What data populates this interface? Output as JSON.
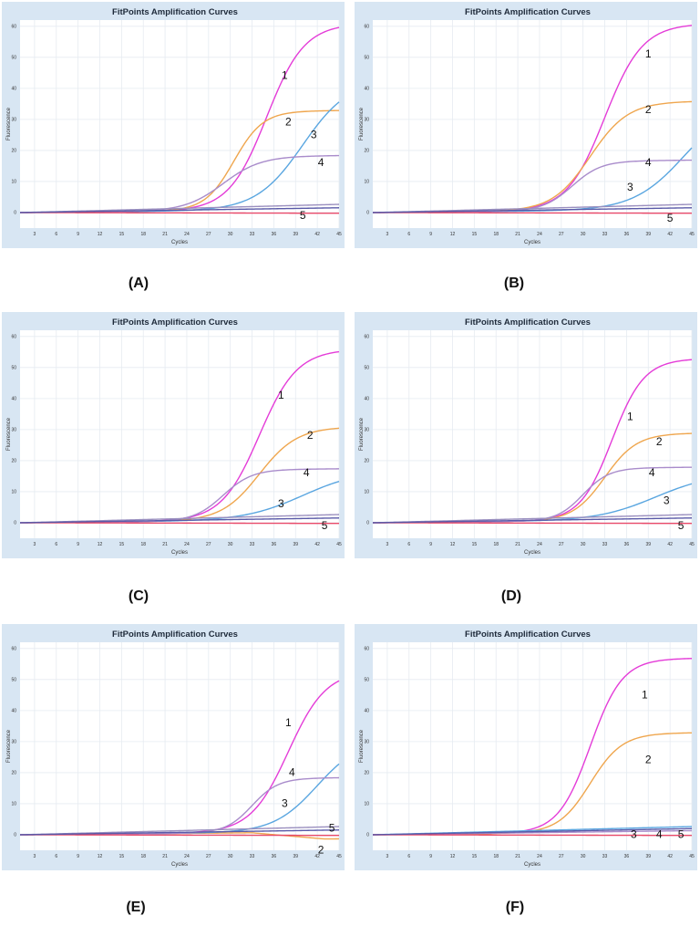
{
  "colors": {
    "frame_bg": "#d8e6f3",
    "plot_bg": "#ffffff",
    "grid": "#e6ebf1",
    "series": {
      "1": "#e43cd8",
      "2": "#efa64e",
      "3": "#5aa6e0",
      "4": "#a98ccb",
      "5": "#e94a6a",
      "flat_a": "#9a8fbf",
      "flat_b": "#5a5aa8"
    }
  },
  "chart_data": [
    {
      "caption": "(A)",
      "type": "line",
      "title": "FitPoints Amplification Curves",
      "xlabel": "Cycles",
      "ylabel": "Fluorescence",
      "xlim": [
        1,
        45
      ],
      "ylim": [
        -5,
        62
      ],
      "grid": true,
      "x_ticks": [
        3,
        6,
        9,
        12,
        15,
        18,
        21,
        24,
        27,
        30,
        33,
        36,
        39,
        42,
        45
      ],
      "y_ticks": [
        0,
        10,
        20,
        30,
        40,
        50,
        60
      ],
      "series": [
        {
          "label": "1",
          "color_key": "1",
          "plateau": 60,
          "midpoint": 35,
          "slope": 2.6,
          "baseline_drift": 0.02
        },
        {
          "label": "2",
          "color_key": "2",
          "plateau": 32,
          "midpoint": 30.5,
          "slope": 2.0,
          "baseline_drift": 0.02
        },
        {
          "label": "3",
          "color_key": "3",
          "plateau": 42,
          "midpoint": 40,
          "slope": 3.2,
          "baseline_drift": 0.02
        },
        {
          "label": "4",
          "color_key": "4",
          "plateau": 17.5,
          "midpoint": 29,
          "slope": 2.6,
          "baseline_drift": 0.02
        },
        {
          "label": "5",
          "color_key": "5",
          "plateau": 0,
          "midpoint": 40,
          "slope": 3,
          "baseline_drift": -0.005
        },
        {
          "label": "",
          "color_key": "flat_a",
          "plateau": 0,
          "midpoint": 40,
          "slope": 3,
          "baseline_drift": 0.06
        },
        {
          "label": "",
          "color_key": "flat_b",
          "plateau": 0,
          "midpoint": 40,
          "slope": 3,
          "baseline_drift": 0.035
        }
      ],
      "series_labels": [
        {
          "text": "1",
          "x": 37.5,
          "y": 43
        },
        {
          "text": "2",
          "x": 38,
          "y": 28
        },
        {
          "text": "3",
          "x": 41.5,
          "y": 24
        },
        {
          "text": "4",
          "x": 42.5,
          "y": 15
        },
        {
          "text": "5",
          "x": 40,
          "y": -2
        }
      ]
    },
    {
      "caption": "(B)",
      "type": "line",
      "title": "FitPoints Amplification Curves",
      "xlabel": "Cycles",
      "ylabel": "Fluorescence",
      "xlim": [
        1,
        45
      ],
      "ylim": [
        -5,
        62
      ],
      "grid": true,
      "x_ticks": [
        3,
        6,
        9,
        12,
        15,
        18,
        21,
        24,
        27,
        30,
        33,
        36,
        39,
        42,
        45
      ],
      "y_ticks": [
        0,
        10,
        20,
        30,
        40,
        50,
        60
      ],
      "series": [
        {
          "label": "1",
          "color_key": "1",
          "plateau": 60,
          "midpoint": 33,
          "slope": 2.6,
          "baseline_drift": 0.02
        },
        {
          "label": "2",
          "color_key": "2",
          "plateau": 35,
          "midpoint": 31,
          "slope": 2.6,
          "baseline_drift": 0.02
        },
        {
          "label": "3",
          "color_key": "3",
          "plateau": 35,
          "midpoint": 44,
          "slope": 3.5,
          "baseline_drift": 0.02
        },
        {
          "label": "4",
          "color_key": "4",
          "plateau": 16,
          "midpoint": 28.5,
          "slope": 2.0,
          "baseline_drift": 0.02
        },
        {
          "label": "5",
          "color_key": "5",
          "plateau": 0,
          "midpoint": 40,
          "slope": 3,
          "baseline_drift": -0.005
        },
        {
          "label": "",
          "color_key": "flat_a",
          "plateau": 0,
          "midpoint": 40,
          "slope": 3,
          "baseline_drift": 0.06
        },
        {
          "label": "",
          "color_key": "flat_b",
          "plateau": 0,
          "midpoint": 40,
          "slope": 3,
          "baseline_drift": 0.035
        }
      ],
      "series_labels": [
        {
          "text": "1",
          "x": 39,
          "y": 50
        },
        {
          "text": "2",
          "x": 39,
          "y": 32
        },
        {
          "text": "3",
          "x": 36.5,
          "y": 7
        },
        {
          "text": "4",
          "x": 39,
          "y": 15
        },
        {
          "text": "5",
          "x": 42,
          "y": -3
        }
      ]
    },
    {
      "caption": "(C)",
      "type": "line",
      "title": "FitPoints Amplification Curves",
      "xlabel": "Cycles",
      "ylabel": "Fluorescence",
      "xlim": [
        1,
        45
      ],
      "ylim": [
        -5,
        62
      ],
      "grid": true,
      "x_ticks": [
        3,
        6,
        9,
        12,
        15,
        18,
        21,
        24,
        27,
        30,
        33,
        36,
        39,
        42,
        45
      ],
      "y_ticks": [
        0,
        10,
        20,
        30,
        40,
        50,
        60
      ],
      "series": [
        {
          "label": "1",
          "color_key": "1",
          "plateau": 55,
          "midpoint": 34,
          "slope": 2.6,
          "baseline_drift": 0.02
        },
        {
          "label": "2",
          "color_key": "2",
          "plateau": 30,
          "midpoint": 34,
          "slope": 2.6,
          "baseline_drift": 0.02
        },
        {
          "label": "3",
          "color_key": "3",
          "plateau": 16,
          "midpoint": 40,
          "slope": 4.0,
          "baseline_drift": 0.02
        },
        {
          "label": "4",
          "color_key": "4",
          "plateau": 16.5,
          "midpoint": 29,
          "slope": 2.0,
          "baseline_drift": 0.02
        },
        {
          "label": "5",
          "color_key": "5",
          "plateau": 0,
          "midpoint": 40,
          "slope": 3,
          "baseline_drift": -0.005
        },
        {
          "label": "",
          "color_key": "flat_a",
          "plateau": 0,
          "midpoint": 40,
          "slope": 3,
          "baseline_drift": 0.06
        },
        {
          "label": "",
          "color_key": "flat_b",
          "plateau": 0,
          "midpoint": 40,
          "slope": 3,
          "baseline_drift": 0.035
        }
      ],
      "series_labels": [
        {
          "text": "1",
          "x": 37,
          "y": 40
        },
        {
          "text": "2",
          "x": 41,
          "y": 27
        },
        {
          "text": "3",
          "x": 37,
          "y": 5
        },
        {
          "text": "4",
          "x": 40.5,
          "y": 15
        },
        {
          "text": "5",
          "x": 43,
          "y": -2
        }
      ]
    },
    {
      "caption": "(D)",
      "type": "line",
      "title": "FitPoints Amplification Curves",
      "xlabel": "Cycles",
      "ylabel": "Fluorescence",
      "xlim": [
        1,
        45
      ],
      "ylim": [
        -5,
        62
      ],
      "grid": true,
      "x_ticks": [
        3,
        6,
        9,
        12,
        15,
        18,
        21,
        24,
        27,
        30,
        33,
        36,
        39,
        42,
        45
      ],
      "y_ticks": [
        0,
        10,
        20,
        30,
        40,
        50,
        60
      ],
      "series": [
        {
          "label": "1",
          "color_key": "1",
          "plateau": 52,
          "midpoint": 34,
          "slope": 2.2,
          "baseline_drift": 0.02
        },
        {
          "label": "2",
          "color_key": "2",
          "plateau": 28,
          "midpoint": 33,
          "slope": 2.2,
          "baseline_drift": 0.02
        },
        {
          "label": "3",
          "color_key": "3",
          "plateau": 15,
          "midpoint": 40,
          "slope": 4.0,
          "baseline_drift": 0.02
        },
        {
          "label": "4",
          "color_key": "4",
          "plateau": 17,
          "midpoint": 30,
          "slope": 1.8,
          "baseline_drift": 0.02
        },
        {
          "label": "5",
          "color_key": "5",
          "plateau": 0,
          "midpoint": 40,
          "slope": 3,
          "baseline_drift": -0.005
        },
        {
          "label": "",
          "color_key": "flat_a",
          "plateau": 0,
          "midpoint": 40,
          "slope": 3,
          "baseline_drift": 0.06
        },
        {
          "label": "",
          "color_key": "flat_b",
          "plateau": 0,
          "midpoint": 40,
          "slope": 3,
          "baseline_drift": 0.035
        }
      ],
      "series_labels": [
        {
          "text": "1",
          "x": 36.5,
          "y": 33
        },
        {
          "text": "2",
          "x": 40.5,
          "y": 25
        },
        {
          "text": "3",
          "x": 41.5,
          "y": 6
        },
        {
          "text": "4",
          "x": 39.5,
          "y": 15
        },
        {
          "text": "5",
          "x": 43.5,
          "y": -2
        }
      ]
    },
    {
      "caption": "(E)",
      "type": "line",
      "title": "FitPoints Amplification Curves",
      "xlabel": "Cycles",
      "ylabel": "Fluorescence",
      "xlim": [
        1,
        45
      ],
      "ylim": [
        -5,
        62
      ],
      "grid": true,
      "x_ticks": [
        3,
        6,
        9,
        12,
        15,
        18,
        21,
        24,
        27,
        30,
        33,
        36,
        39,
        42,
        45
      ],
      "y_ticks": [
        0,
        10,
        20,
        30,
        40,
        50,
        60
      ],
      "series": [
        {
          "label": "1",
          "color_key": "1",
          "plateau": 52,
          "midpoint": 38,
          "slope": 2.6,
          "baseline_drift": 0.02
        },
        {
          "label": "2",
          "color_key": "2",
          "plateau": 0,
          "midpoint": 40,
          "slope": 3,
          "baseline_drift": 0.02,
          "tail_drop": [
            33,
            -2.2
          ]
        },
        {
          "label": "3",
          "color_key": "3",
          "plateau": 30,
          "midpoint": 42,
          "slope": 3.0,
          "baseline_drift": 0.02
        },
        {
          "label": "4",
          "color_key": "4",
          "plateau": 17.5,
          "midpoint": 33,
          "slope": 1.8,
          "baseline_drift": 0.02
        },
        {
          "label": "5",
          "color_key": "5",
          "plateau": 0,
          "midpoint": 40,
          "slope": 3,
          "baseline_drift": -0.005
        },
        {
          "label": "",
          "color_key": "flat_a",
          "plateau": 0,
          "midpoint": 40,
          "slope": 3,
          "baseline_drift": 0.06
        },
        {
          "label": "",
          "color_key": "flat_b",
          "plateau": 0,
          "midpoint": 40,
          "slope": 3,
          "baseline_drift": 0.035
        }
      ],
      "series_labels": [
        {
          "text": "1",
          "x": 38,
          "y": 35
        },
        {
          "text": "2",
          "x": 42.5,
          "y": -6
        },
        {
          "text": "3",
          "x": 37.5,
          "y": 9
        },
        {
          "text": "4",
          "x": 38.5,
          "y": 19
        },
        {
          "text": "5",
          "x": 44,
          "y": 1
        }
      ]
    },
    {
      "caption": "(F)",
      "type": "line",
      "title": "FitPoints Amplification Curves",
      "xlabel": "Cycles",
      "ylabel": "Fluorescence",
      "xlim": [
        1,
        45
      ],
      "ylim": [
        -5,
        62
      ],
      "grid": true,
      "x_ticks": [
        3,
        6,
        9,
        12,
        15,
        18,
        21,
        24,
        27,
        30,
        33,
        36,
        39,
        42,
        45
      ],
      "y_ticks": [
        0,
        10,
        20,
        30,
        40,
        50,
        60
      ],
      "series": [
        {
          "label": "1",
          "color_key": "1",
          "plateau": 56,
          "midpoint": 31,
          "slope": 2.2,
          "baseline_drift": 0.02
        },
        {
          "label": "2",
          "color_key": "2",
          "plateau": 32,
          "midpoint": 31,
          "slope": 2.2,
          "baseline_drift": 0.02
        },
        {
          "label": "3",
          "color_key": "3",
          "plateau": 0,
          "midpoint": 40,
          "slope": 3,
          "baseline_drift": 0.06
        },
        {
          "label": "4",
          "color_key": "4",
          "plateau": 0,
          "midpoint": 40,
          "slope": 3,
          "baseline_drift": 0.03
        },
        {
          "label": "5",
          "color_key": "5",
          "plateau": 0,
          "midpoint": 40,
          "slope": 3,
          "baseline_drift": -0.005
        },
        {
          "label": "",
          "color_key": "flat_b",
          "plateau": 0,
          "midpoint": 40,
          "slope": 3,
          "baseline_drift": 0.045
        }
      ],
      "series_labels": [
        {
          "text": "1",
          "x": 38.5,
          "y": 44
        },
        {
          "text": "2",
          "x": 39,
          "y": 23
        },
        {
          "text": "3",
          "x": 37,
          "y": -1
        },
        {
          "text": "4",
          "x": 40.5,
          "y": -1
        },
        {
          "text": "5",
          "x": 43.5,
          "y": -1
        }
      ]
    }
  ]
}
